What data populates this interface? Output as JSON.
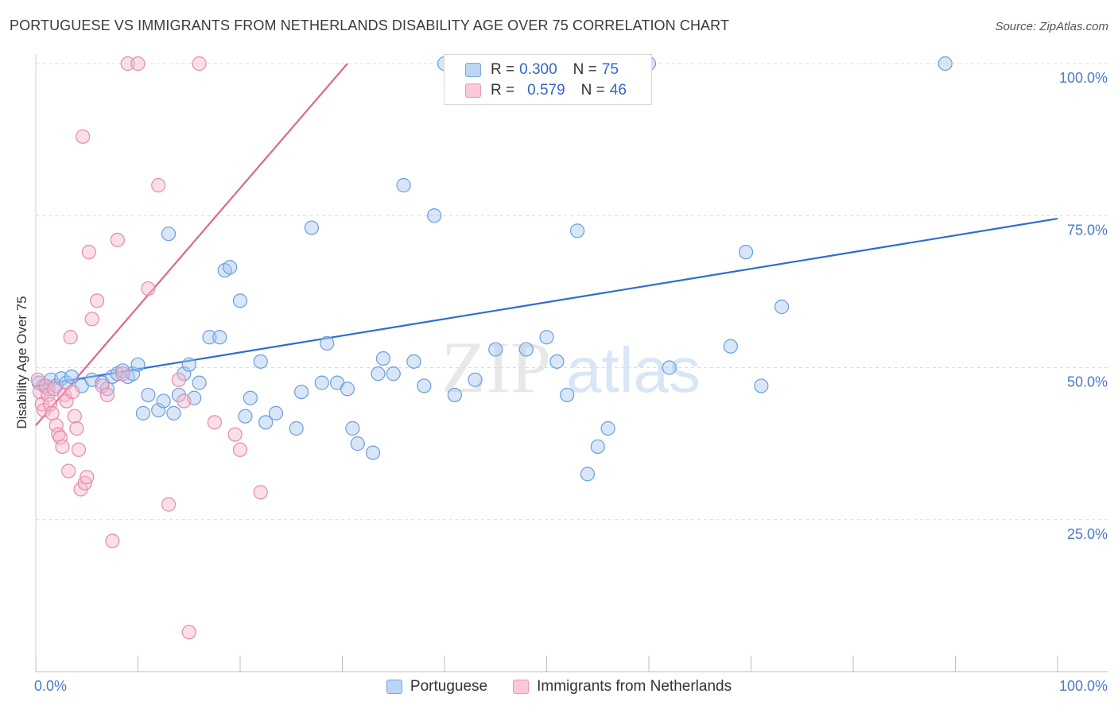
{
  "title": "PORTUGUESE VS IMMIGRANTS FROM NETHERLANDS DISABILITY AGE OVER 75 CORRELATION CHART",
  "source": "Source: ZipAtlas.com",
  "watermark": {
    "part1": "ZIP",
    "part2": "atlas"
  },
  "colors": {
    "portuguese_fill": "#a8c8f0",
    "portuguese_stroke": "#6a9ee0",
    "portuguese_line": "#2a6fd0",
    "netherlands_fill": "#f6b8cc",
    "netherlands_stroke": "#e88aaa",
    "netherlands_line": "#e06690",
    "tick_text": "#4a7ac8"
  },
  "legend": {
    "rows": [
      {
        "r_label": "R =",
        "r_value": "0.300",
        "n_label": "N =",
        "n_value": "75"
      },
      {
        "r_label": "R =",
        "r_value": "0.579",
        "n_label": "N =",
        "n_value": "46"
      }
    ]
  },
  "bottom_legend": [
    "Portuguese",
    "Immigrants from Netherlands"
  ],
  "chart_data": {
    "type": "scatter",
    "title": "PORTUGUESE VS IMMIGRANTS FROM NETHERLANDS DISABILITY AGE OVER 75 CORRELATION CHART",
    "xlabel": "",
    "ylabel": "Disability Age Over 75",
    "xlim": [
      0,
      100
    ],
    "ylim": [
      0,
      100
    ],
    "x_tick_labels": [
      "0.0%",
      "100.0%"
    ],
    "y_ticks": [
      25,
      50,
      75,
      100
    ],
    "y_tick_labels": [
      "25.0%",
      "50.0%",
      "75.0%",
      "100.0%"
    ],
    "grid": true,
    "legend_position": "top-center",
    "series": [
      {
        "name": "Portuguese",
        "x": [
          0.3,
          0.8,
          1.2,
          1.5,
          2.0,
          2.5,
          3.0,
          3.5,
          4.5,
          5.5,
          6.5,
          7.0,
          7.5,
          8.0,
          8.5,
          9.0,
          9.5,
          10.0,
          10.5,
          11.0,
          12.0,
          12.5,
          13.0,
          13.5,
          14.0,
          14.5,
          15.0,
          15.5,
          16.0,
          17.0,
          18.0,
          18.5,
          19.0,
          20.0,
          20.5,
          21.0,
          22.0,
          22.5,
          23.5,
          25.5,
          26.0,
          27.0,
          28.0,
          28.5,
          29.5,
          30.5,
          31.0,
          31.5,
          33.0,
          33.5,
          34.0,
          35.0,
          36.0,
          37.0,
          38.0,
          39.0,
          41.0,
          43.0,
          45.0,
          48.0,
          50.0,
          51.0,
          52.0,
          53.0,
          54.0,
          55.0,
          56.0,
          62.0,
          68.0,
          69.5,
          71.0,
          73.0,
          89.0,
          60.0,
          40.0
        ],
        "y": [
          47.5,
          47.0,
          46.5,
          48.0,
          47.0,
          48.2,
          47.5,
          48.5,
          47.0,
          48.0,
          47.5,
          46.5,
          48.5,
          49.0,
          49.5,
          48.5,
          49.0,
          50.5,
          42.5,
          45.5,
          43.0,
          44.5,
          72.0,
          42.5,
          45.5,
          49.0,
          50.5,
          45.0,
          47.5,
          55.0,
          55.0,
          66.0,
          66.5,
          61.0,
          42.0,
          45.0,
          51.0,
          41.0,
          42.5,
          40.0,
          46.0,
          73.0,
          47.5,
          54.0,
          47.5,
          46.5,
          40.0,
          37.5,
          36.0,
          49.0,
          51.5,
          49.0,
          80.0,
          51.0,
          47.0,
          75.0,
          45.5,
          48.0,
          53.0,
          53.0,
          55.0,
          51.0,
          45.5,
          72.5,
          32.5,
          37.0,
          40.0,
          50.0,
          53.5,
          69.0,
          47.0,
          60.0,
          100.0,
          100.0,
          100.0
        ]
      },
      {
        "name": "Immigrants from Netherlands",
        "x": [
          0.2,
          0.4,
          0.6,
          0.8,
          1.0,
          1.2,
          1.4,
          1.6,
          1.8,
          2.0,
          2.2,
          2.4,
          2.6,
          2.8,
          3.0,
          3.2,
          3.4,
          3.6,
          3.8,
          4.0,
          4.2,
          4.4,
          4.6,
          4.8,
          5.0,
          5.2,
          5.5,
          6.0,
          6.5,
          7.0,
          7.5,
          8.0,
          8.5,
          9.0,
          10.0,
          11.0,
          12.0,
          13.0,
          14.0,
          14.5,
          15.0,
          16.0,
          17.5,
          19.5,
          20.0,
          22.0
        ],
        "y": [
          48.0,
          46.0,
          44.0,
          43.0,
          47.0,
          45.5,
          44.0,
          42.5,
          46.5,
          40.5,
          39.0,
          38.5,
          37.0,
          45.5,
          44.5,
          33.0,
          55.0,
          46.0,
          42.0,
          40.0,
          36.5,
          30.0,
          88.0,
          31.0,
          32.0,
          69.0,
          58.0,
          61.0,
          47.0,
          45.5,
          21.5,
          71.0,
          49.0,
          100.0,
          100.0,
          63.0,
          80.0,
          27.5,
          48.0,
          44.5,
          6.5,
          100.0,
          41.0,
          39.0,
          36.5,
          29.5
        ]
      }
    ],
    "trendlines": [
      {
        "name": "Portuguese",
        "x": [
          0,
          100
        ],
        "y": [
          47.0,
          74.5
        ]
      },
      {
        "name": "Immigrants from Netherlands",
        "x": [
          0,
          30.5
        ],
        "y": [
          40.5,
          100.0
        ]
      }
    ]
  }
}
